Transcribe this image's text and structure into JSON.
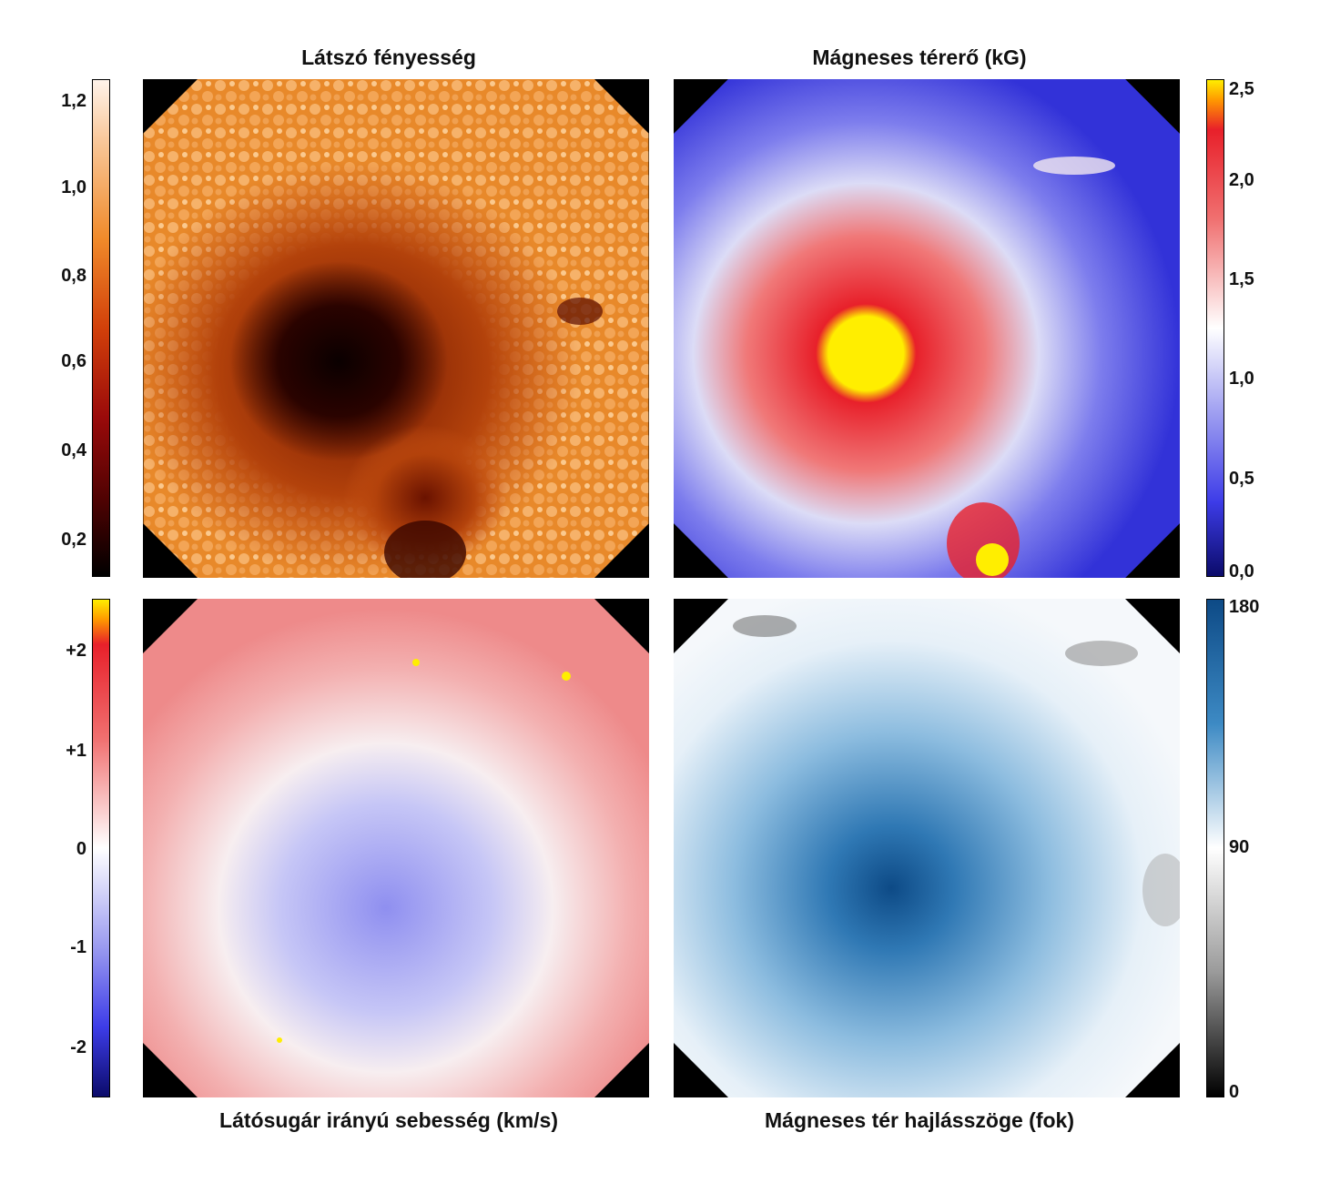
{
  "titles": {
    "intensity": "Látszó fényesség",
    "field_strength": "Mágneses térerő (kG)",
    "velocity": "Látósugár irányú sebesség (km/s)",
    "inclination": "Mágneses tér hajlásszöge (fok)"
  },
  "colorbars": {
    "intensity": {
      "ticks": [
        "1,2",
        "1,0",
        "0,8",
        "0,6",
        "0,4",
        "0,2"
      ],
      "colors": {
        "top": "#fff3ea",
        "mid": "#e07a10",
        "low": "#9a0a0a",
        "bottom": "#000000"
      }
    },
    "field_strength": {
      "ticks": [
        "2,5",
        "2,0",
        "1,5",
        "1,0",
        "0,5",
        "0,0"
      ],
      "colors": {
        "top": "#ffee00",
        "upper": "#e8202a",
        "mid": "#ffffff",
        "lower": "#3d3ce8",
        "bottom": "#0b0b6a"
      }
    },
    "velocity": {
      "ticks": [
        "+2",
        "+1",
        "0",
        "-1",
        "-2"
      ],
      "colors": {
        "top": "#ffee00",
        "upper": "#e8202a",
        "mid": "#ffffff",
        "lower": "#3d3ce8",
        "bottom": "#0b0b6a"
      }
    },
    "inclination": {
      "ticks": [
        "180",
        "90",
        "0"
      ],
      "colors": {
        "top": "#0d4a86",
        "mid": "#ffffff",
        "bottom": "#000000"
      }
    }
  }
}
